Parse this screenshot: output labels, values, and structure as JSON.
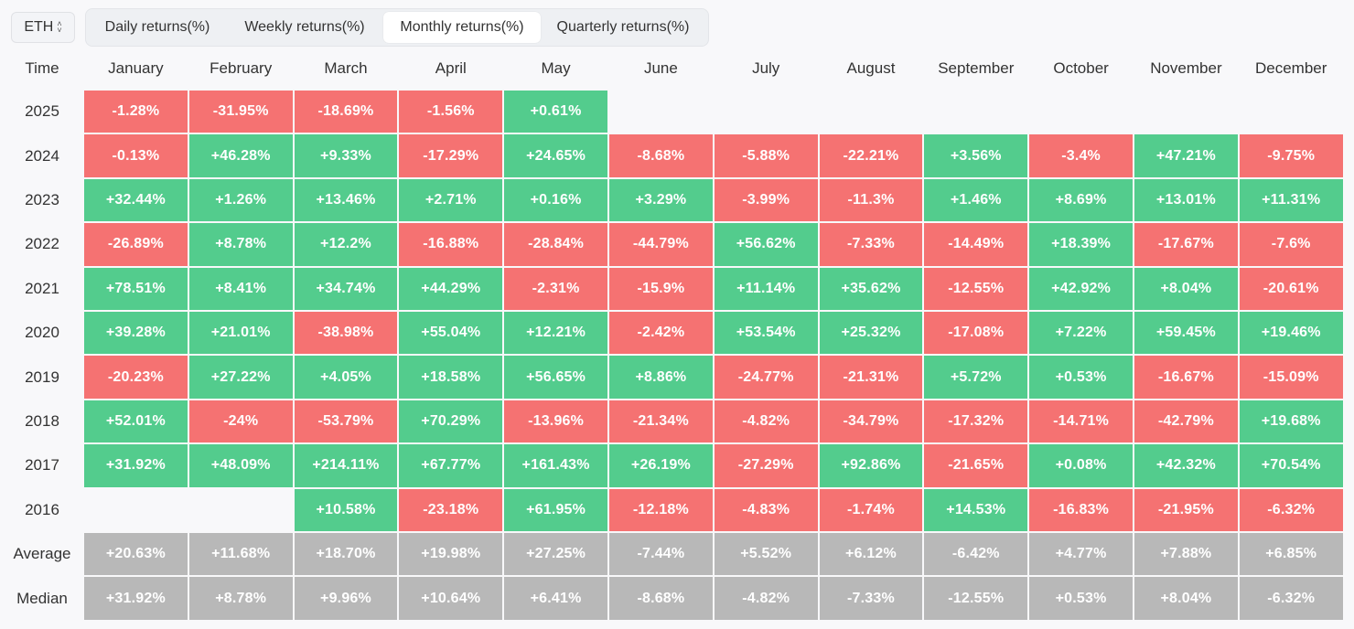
{
  "toolbar": {
    "asset": "ETH",
    "tabs": [
      {
        "label": "Daily returns(%)",
        "active": false
      },
      {
        "label": "Weekly returns(%)",
        "active": false
      },
      {
        "label": "Monthly returns(%)",
        "active": true
      },
      {
        "label": "Quarterly returns(%)",
        "active": false
      }
    ]
  },
  "colors": {
    "positive": "#53cc8d",
    "negative": "#f57272",
    "summary": "#b8b8b8"
  },
  "chart_data": {
    "type": "heatmap",
    "corner_label": "Time",
    "columns": [
      "January",
      "February",
      "March",
      "April",
      "May",
      "June",
      "July",
      "August",
      "September",
      "October",
      "November",
      "December"
    ],
    "rows": [
      {
        "label": "2025",
        "values": [
          "-1.28%",
          "-31.95%",
          "-18.69%",
          "-1.56%",
          "+0.61%",
          "",
          "",
          "",
          "",
          "",
          "",
          ""
        ]
      },
      {
        "label": "2024",
        "values": [
          "-0.13%",
          "+46.28%",
          "+9.33%",
          "-17.29%",
          "+24.65%",
          "-8.68%",
          "-5.88%",
          "-22.21%",
          "+3.56%",
          "-3.4%",
          "+47.21%",
          "-9.75%"
        ]
      },
      {
        "label": "2023",
        "values": [
          "+32.44%",
          "+1.26%",
          "+13.46%",
          "+2.71%",
          "+0.16%",
          "+3.29%",
          "-3.99%",
          "-11.3%",
          "+1.46%",
          "+8.69%",
          "+13.01%",
          "+11.31%"
        ]
      },
      {
        "label": "2022",
        "values": [
          "-26.89%",
          "+8.78%",
          "+12.2%",
          "-16.88%",
          "-28.84%",
          "-44.79%",
          "+56.62%",
          "-7.33%",
          "-14.49%",
          "+18.39%",
          "-17.67%",
          "-7.6%"
        ]
      },
      {
        "label": "2021",
        "values": [
          "+78.51%",
          "+8.41%",
          "+34.74%",
          "+44.29%",
          "-2.31%",
          "-15.9%",
          "+11.14%",
          "+35.62%",
          "-12.55%",
          "+42.92%",
          "+8.04%",
          "-20.61%"
        ]
      },
      {
        "label": "2020",
        "values": [
          "+39.28%",
          "+21.01%",
          "-38.98%",
          "+55.04%",
          "+12.21%",
          "-2.42%",
          "+53.54%",
          "+25.32%",
          "-17.08%",
          "+7.22%",
          "+59.45%",
          "+19.46%"
        ]
      },
      {
        "label": "2019",
        "values": [
          "-20.23%",
          "+27.22%",
          "+4.05%",
          "+18.58%",
          "+56.65%",
          "+8.86%",
          "-24.77%",
          "-21.31%",
          "+5.72%",
          "+0.53%",
          "-16.67%",
          "-15.09%"
        ]
      },
      {
        "label": "2018",
        "values": [
          "+52.01%",
          "-24%",
          "-53.79%",
          "+70.29%",
          "-13.96%",
          "-21.34%",
          "-4.82%",
          "-34.79%",
          "-17.32%",
          "-14.71%",
          "-42.79%",
          "+19.68%"
        ]
      },
      {
        "label": "2017",
        "values": [
          "+31.92%",
          "+48.09%",
          "+214.11%",
          "+67.77%",
          "+161.43%",
          "+26.19%",
          "-27.29%",
          "+92.86%",
          "-21.65%",
          "+0.08%",
          "+42.32%",
          "+70.54%"
        ]
      },
      {
        "label": "2016",
        "values": [
          "",
          "",
          "+10.58%",
          "-23.18%",
          "+61.95%",
          "-12.18%",
          "-4.83%",
          "-1.74%",
          "+14.53%",
          "-16.83%",
          "-21.95%",
          "-6.32%"
        ]
      }
    ],
    "summary_rows": [
      {
        "label": "Average",
        "values": [
          "+20.63%",
          "+11.68%",
          "+18.70%",
          "+19.98%",
          "+27.25%",
          "-7.44%",
          "+5.52%",
          "+6.12%",
          "-6.42%",
          "+4.77%",
          "+7.88%",
          "+6.85%"
        ]
      },
      {
        "label": "Median",
        "values": [
          "+31.92%",
          "+8.78%",
          "+9.96%",
          "+10.64%",
          "+6.41%",
          "-8.68%",
          "-4.82%",
          "-7.33%",
          "-12.55%",
          "+0.53%",
          "+8.04%",
          "-6.32%"
        ]
      }
    ]
  }
}
